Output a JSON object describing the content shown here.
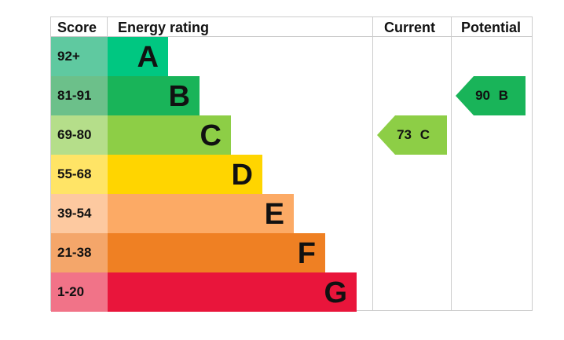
{
  "chart_data": {
    "type": "table",
    "title": "Energy rating",
    "headers": {
      "score": "Score",
      "rating": "Energy rating",
      "current": "Current",
      "potential": "Potential"
    },
    "bands": [
      {
        "letter": "A",
        "range": "92+",
        "color": "#00c781",
        "score_color": "#5fc9a0"
      },
      {
        "letter": "B",
        "range": "81-91",
        "color": "#19b459",
        "score_color": "#6cc08a"
      },
      {
        "letter": "C",
        "range": "69-80",
        "color": "#8dce46",
        "score_color": "#b5de8a"
      },
      {
        "letter": "D",
        "range": "55-68",
        "color": "#ffd500",
        "score_color": "#ffe466"
      },
      {
        "letter": "E",
        "range": "39-54",
        "color": "#fcaa65",
        "score_color": "#fdc9a0"
      },
      {
        "letter": "F",
        "range": "21-38",
        "color": "#ef8023",
        "score_color": "#f4a66a"
      },
      {
        "letter": "G",
        "range": "1-20",
        "color": "#e9153b",
        "score_color": "#f17388"
      }
    ],
    "current": {
      "value": 73,
      "letter": "C",
      "label": "73 C"
    },
    "potential": {
      "value": 90,
      "letter": "B",
      "label": "90 B"
    }
  }
}
